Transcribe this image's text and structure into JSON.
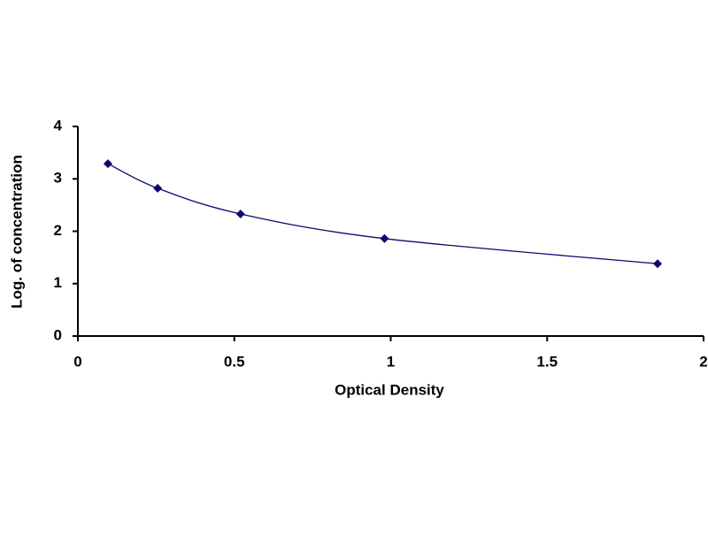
{
  "chart_data": {
    "type": "line",
    "smooth": true,
    "markers": "diamond",
    "x_label": "Optical Density",
    "y_label": "Log. of concentration",
    "x": [
      0.096,
      0.255,
      0.52,
      0.98,
      1.853
    ],
    "values": [
      3.29,
      2.82,
      2.33,
      1.86,
      1.38
    ],
    "color": "#0a0a6e",
    "xlim": [
      0,
      2
    ],
    "xticks": [
      0,
      0.5,
      1,
      1.5,
      2
    ],
    "ylim": [
      0,
      4
    ],
    "yticks": [
      0,
      1,
      2,
      3,
      4
    ],
    "grid": false
  }
}
